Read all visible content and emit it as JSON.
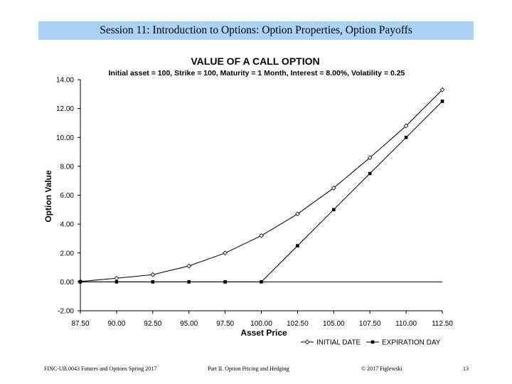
{
  "header": {
    "title": "Session 11:  Introduction to Options: Option Properties, Option Payoffs"
  },
  "chart_data": {
    "type": "line",
    "title": "VALUE OF A CALL OPTION",
    "subtitle": "Initial asset = 100,  Strike = 100,  Maturity = 1 Month,  Interest = 8.00%,  Volatility = 0.25",
    "xlabel": "Asset Price",
    "ylabel": "Option Value",
    "x": [
      87.5,
      90.0,
      92.5,
      95.0,
      97.5,
      100.0,
      102.5,
      105.0,
      107.5,
      110.0,
      112.5
    ],
    "x_tick_labels": [
      "87.50",
      "90.00",
      "92.50",
      "95.00",
      "97.50",
      "100.00",
      "102.50",
      "105.00",
      "107.50",
      "110.00",
      "112.50"
    ],
    "ylim": [
      -2,
      14
    ],
    "y_ticks": [
      -2,
      0,
      2,
      4,
      6,
      8,
      10,
      12,
      14
    ],
    "y_tick_labels": [
      "-2.00",
      "0.00",
      "2.00",
      "4.00",
      "6.00",
      "8.00",
      "10.00",
      "12.00",
      "14.00"
    ],
    "grid": false,
    "legend_position": "bottom-right",
    "series": [
      {
        "name": "INITIAL DATE",
        "marker": "open-diamond",
        "color": "#000000",
        "values": [
          0.03,
          0.25,
          0.5,
          1.1,
          2.0,
          3.2,
          4.7,
          6.5,
          8.6,
          10.8,
          13.3
        ]
      },
      {
        "name": "EXPIRATION DAY",
        "marker": "filled-square",
        "color": "#000000",
        "values": [
          0,
          0,
          0,
          0,
          0,
          0,
          2.5,
          5.0,
          7.5,
          10.0,
          12.5
        ]
      }
    ]
  },
  "footer": {
    "course": "FINC-UB.0043  Futures and Options  Spring 2017",
    "part": "Part II. Option Pricing and Hedging",
    "copyright": "© 2017 Figlewski",
    "page": "13"
  }
}
